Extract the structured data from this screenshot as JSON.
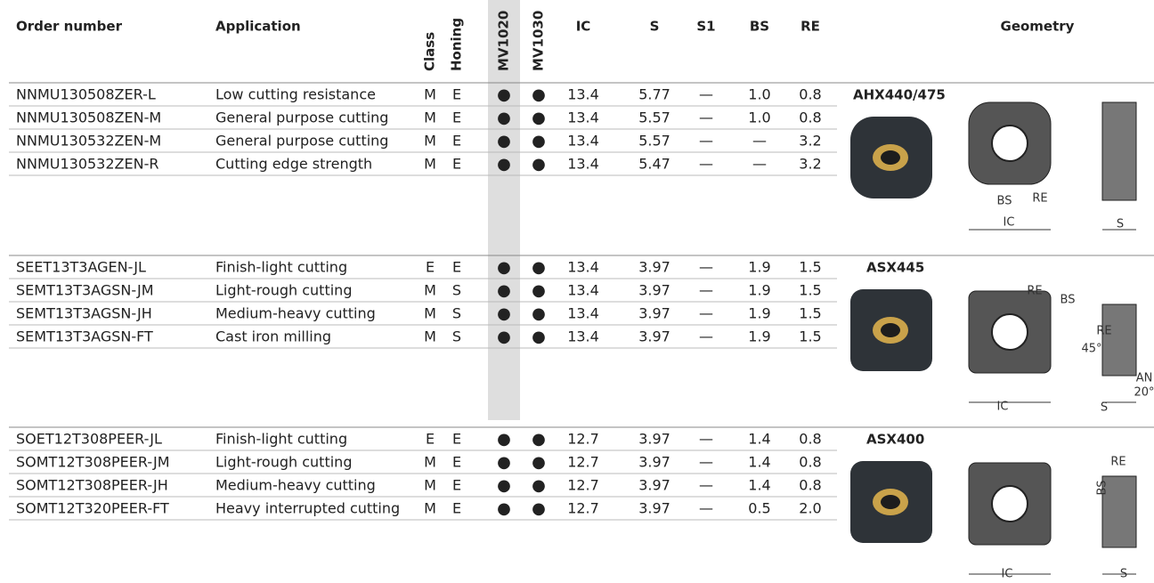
{
  "header": {
    "columns": [
      "Order number",
      "Application",
      "Class",
      "Honing",
      "MV1020",
      "MV1030",
      "IC",
      "S",
      "S1",
      "BS",
      "RE",
      "Geometry"
    ]
  },
  "groups": [
    {
      "rows": [
        [
          "NNMU130508ZER-L",
          "Low cutting resistance",
          "M",
          "E",
          "●",
          "●",
          "13.4",
          "5.77",
          "—",
          "1.0",
          "0.8"
        ],
        [
          "NNMU130508ZEN-M",
          "General purpose cutting",
          "M",
          "E",
          "●",
          "●",
          "13.4",
          "5.57",
          "—",
          "1.0",
          "0.8"
        ],
        [
          "NNMU130532ZEN-M",
          "General purpose cutting",
          "M",
          "E",
          "●",
          "●",
          "13.4",
          "5.57",
          "—",
          "—",
          "3.2"
        ],
        [
          "NNMU130532ZEN-R",
          "Cutting edge strength",
          "M",
          "E",
          "●",
          "●",
          "13.4",
          "5.47",
          "—",
          "—",
          "3.2"
        ]
      ],
      "geometry": {
        "name": "AHX440/475",
        "labels": [
          "BS",
          "RE",
          "IC",
          "S"
        ]
      }
    },
    {
      "rows": [
        [
          "SEET13T3AGEN-JL",
          "Finish-light cutting",
          "E",
          "E",
          "●",
          "●",
          "13.4",
          "3.97",
          "—",
          "1.9",
          "1.5"
        ],
        [
          "SEMT13T3AGSN-JM",
          "Light-rough cutting",
          "M",
          "S",
          "●",
          "●",
          "13.4",
          "3.97",
          "—",
          "1.9",
          "1.5"
        ],
        [
          "SEMT13T3AGSN-JH",
          "Medium-heavy cutting",
          "M",
          "S",
          "●",
          "●",
          "13.4",
          "3.97",
          "—",
          "1.9",
          "1.5"
        ],
        [
          "SEMT13T3AGSN-FT",
          "Cast iron milling",
          "M",
          "S",
          "●",
          "●",
          "13.4",
          "3.97",
          "—",
          "1.9",
          "1.5"
        ]
      ],
      "geometry": {
        "name": "ASX445",
        "labels": [
          "RE",
          "BS",
          "RE",
          "45°",
          "AN",
          "20°",
          "IC",
          "S"
        ]
      }
    },
    {
      "rows": [
        [
          "SOET12T308PEER-JL",
          "Finish-light cutting",
          "E",
          "E",
          "●",
          "●",
          "12.7",
          "3.97",
          "—",
          "1.4",
          "0.8"
        ],
        [
          "SOMT12T308PEER-JM",
          "Light-rough cutting",
          "M",
          "E",
          "●",
          "●",
          "12.7",
          "3.97",
          "—",
          "1.4",
          "0.8"
        ],
        [
          "SOMT12T308PEER-JH",
          "Medium-heavy cutting",
          "M",
          "E",
          "●",
          "●",
          "12.7",
          "3.97",
          "—",
          "1.4",
          "0.8"
        ],
        [
          "SOMT12T320PEER-FT",
          "Heavy interrupted cutting",
          "M",
          "E",
          "●",
          "●",
          "12.7",
          "3.97",
          "—",
          "0.5",
          "2.0"
        ]
      ],
      "geometry": {
        "name": "ASX400",
        "labels": [
          "RE",
          "BS",
          "IC",
          "S"
        ]
      }
    }
  ]
}
